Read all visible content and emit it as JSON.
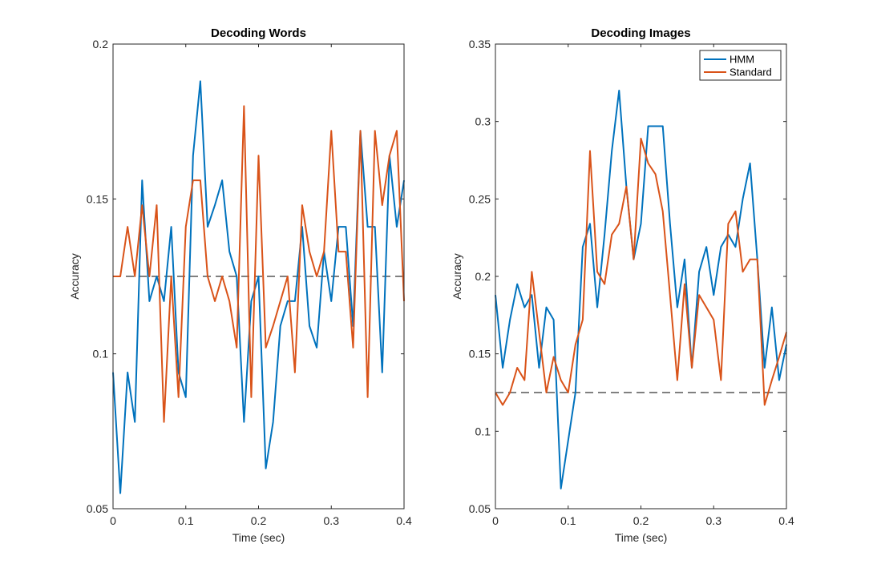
{
  "chart_data": [
    {
      "type": "line",
      "title": "Decoding Words",
      "xlabel": "Time (sec)",
      "ylabel": "Accuracy",
      "xlim": [
        0,
        0.4
      ],
      "ylim": [
        0.05,
        0.2
      ],
      "xticks": [
        "0",
        "0.1",
        "0.2",
        "0.3",
        "0.4"
      ],
      "yticks": [
        "0.05",
        "0.1",
        "0.15",
        "0.2"
      ],
      "chance": 0.125,
      "legend": false,
      "x": [
        0,
        0.01,
        0.02,
        0.03,
        0.04,
        0.05,
        0.06,
        0.07,
        0.08,
        0.09,
        0.1,
        0.11,
        0.12,
        0.13,
        0.14,
        0.15,
        0.16,
        0.17,
        0.18,
        0.19,
        0.2,
        0.21,
        0.22,
        0.23,
        0.24,
        0.25,
        0.26,
        0.27,
        0.28,
        0.29,
        0.3,
        0.31,
        0.32,
        0.33,
        0.34,
        0.35,
        0.36,
        0.37,
        0.38,
        0.39,
        0.4
      ],
      "series": [
        {
          "name": "HMM",
          "color": "#0072BD",
          "values": [
            0.094,
            0.055,
            0.094,
            0.078,
            0.156,
            0.117,
            0.125,
            0.117,
            0.141,
            0.094,
            0.086,
            0.164,
            0.188,
            0.141,
            0.148,
            0.156,
            0.133,
            0.125,
            0.078,
            0.117,
            0.125,
            0.063,
            0.078,
            0.109,
            0.117,
            0.117,
            0.141,
            0.109,
            0.102,
            0.133,
            0.117,
            0.141,
            0.141,
            0.109,
            0.172,
            0.141,
            0.141,
            0.094,
            0.164,
            0.141,
            0.156
          ]
        },
        {
          "name": "Standard",
          "color": "#D95319",
          "values": [
            0.125,
            0.125,
            0.141,
            0.125,
            0.148,
            0.125,
            0.148,
            0.078,
            0.125,
            0.086,
            0.141,
            0.156,
            0.156,
            0.125,
            0.117,
            0.125,
            0.117,
            0.102,
            0.18,
            0.086,
            0.164,
            0.102,
            0.109,
            0.117,
            0.125,
            0.094,
            0.148,
            0.133,
            0.125,
            0.133,
            0.172,
            0.133,
            0.133,
            0.102,
            0.172,
            0.086,
            0.172,
            0.148,
            0.164,
            0.172,
            0.117
          ]
        }
      ]
    },
    {
      "type": "line",
      "title": "Decoding Images",
      "xlabel": "Time (sec)",
      "ylabel": "Accuracy",
      "xlim": [
        0,
        0.4
      ],
      "ylim": [
        0.05,
        0.35
      ],
      "xticks": [
        "0",
        "0.1",
        "0.2",
        "0.3",
        "0.4"
      ],
      "yticks": [
        "0.05",
        "0.1",
        "0.15",
        "0.2",
        "0.25",
        "0.3",
        "0.35"
      ],
      "chance": 0.125,
      "legend": true,
      "legend_position": "top-right",
      "x": [
        0,
        0.01,
        0.02,
        0.03,
        0.04,
        0.05,
        0.06,
        0.07,
        0.08,
        0.09,
        0.1,
        0.11,
        0.12,
        0.13,
        0.14,
        0.15,
        0.16,
        0.17,
        0.18,
        0.19,
        0.2,
        0.21,
        0.22,
        0.23,
        0.24,
        0.25,
        0.26,
        0.27,
        0.28,
        0.29,
        0.3,
        0.31,
        0.32,
        0.33,
        0.34,
        0.35,
        0.36,
        0.37,
        0.38,
        0.39,
        0.4
      ],
      "series": [
        {
          "name": "HMM",
          "color": "#0072BD",
          "values": [
            0.188,
            0.141,
            0.172,
            0.195,
            0.18,
            0.188,
            0.141,
            0.18,
            0.172,
            0.063,
            0.094,
            0.125,
            0.219,
            0.234,
            0.18,
            0.227,
            0.281,
            0.32,
            0.258,
            0.211,
            0.234,
            0.297,
            0.297,
            0.297,
            0.234,
            0.18,
            0.211,
            0.141,
            0.203,
            0.219,
            0.188,
            0.219,
            0.227,
            0.219,
            0.25,
            0.273,
            0.211,
            0.141,
            0.18,
            0.133,
            0.156
          ]
        },
        {
          "name": "Standard",
          "color": "#D95319",
          "values": [
            0.125,
            0.117,
            0.125,
            0.141,
            0.133,
            0.203,
            0.164,
            0.125,
            0.148,
            0.133,
            0.125,
            0.156,
            0.172,
            0.281,
            0.203,
            0.195,
            0.227,
            0.234,
            0.258,
            0.211,
            0.289,
            0.273,
            0.266,
            0.242,
            0.188,
            0.133,
            0.195,
            0.141,
            0.188,
            0.18,
            0.172,
            0.133,
            0.234,
            0.242,
            0.203,
            0.211,
            0.211,
            0.117,
            0.133,
            0.148,
            0.164
          ]
        }
      ]
    }
  ]
}
